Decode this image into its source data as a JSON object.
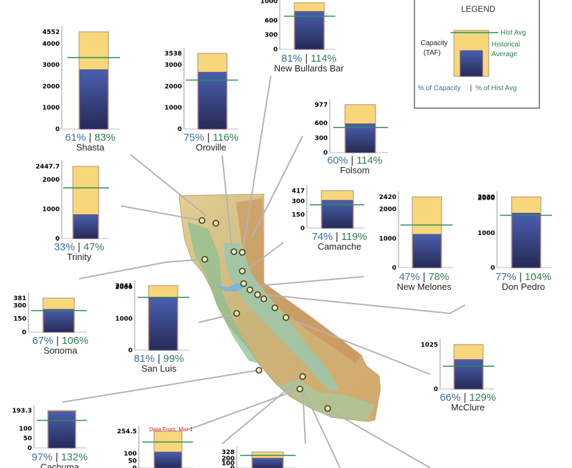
{
  "legend": {
    "title": "LEGEND",
    "capacity_label_1": "Capacity",
    "capacity_label_2": "(TAF)",
    "hist_avg_label": "Hist Avg",
    "historical_label_1": "Historical",
    "historical_label_2": "Average",
    "pct_capacity_label": "% of Capacity",
    "sep": "|",
    "pct_hist_label": "% of Hist Avg"
  },
  "data_note": "Data From: Mar 1",
  "colors": {
    "capacity_fill": "#f7d77a",
    "storage_top": "#4a5fb0",
    "storage_bottom": "#262a55",
    "hist_line": "#2e8b57",
    "pct_capacity": "#3a6f9a",
    "pct_hist": "#2e7d4f",
    "dots": "#f2e9a8",
    "leaders": "#b3b3b3"
  },
  "chart_data": {
    "type": "bar",
    "units": "TAF",
    "reservoirs": [
      {
        "name": "Shasta",
        "capacity": 4552,
        "storage": 2777,
        "hist_avg": 3346,
        "pct_capacity": "61%",
        "pct_hist": "83%",
        "ticks": [
          "4552",
          "4000",
          "3000",
          "2000",
          "1000",
          "0"
        ]
      },
      {
        "name": "Oroville",
        "capacity": 3538,
        "storage": 2654,
        "hist_avg": 2288,
        "pct_capacity": "75%",
        "pct_hist": "116%",
        "ticks": [
          "3538",
          "3000",
          "2000",
          "1000",
          "0"
        ]
      },
      {
        "name": "New Bullards Bar",
        "capacity": 966,
        "storage": 783,
        "hist_avg": 687,
        "pct_capacity": "81%",
        "pct_hist": "114%",
        "ticks": [
          "1000",
          "600",
          "300",
          "0"
        ]
      },
      {
        "name": "Folsom",
        "capacity": 977,
        "storage": 586,
        "hist_avg": 514,
        "pct_capacity": "60%",
        "pct_hist": "114%",
        "ticks": [
          "977",
          "600",
          "300",
          "0"
        ]
      },
      {
        "name": "Trinity",
        "capacity": 2447.7,
        "storage": 808,
        "hist_avg": 1719,
        "pct_capacity": "33%",
        "pct_hist": "47%",
        "ticks": [
          "2447.7",
          "2000",
          "1000",
          "0"
        ]
      },
      {
        "name": "Camanche",
        "capacity": 417,
        "storage": 309,
        "hist_avg": 260,
        "pct_capacity": "74%",
        "pct_hist": "119%",
        "ticks": [
          "417",
          "300",
          "150",
          "0"
        ]
      },
      {
        "name": "New Melones",
        "capacity": 2420,
        "storage": 1137,
        "hist_avg": 1458,
        "pct_capacity": "47%",
        "pct_hist": "78%",
        "ticks": [
          "2420",
          "2000",
          "1000",
          "0"
        ]
      },
      {
        "name": "Don Pedro",
        "capacity": 2030,
        "storage": 1563,
        "hist_avg": 1503,
        "pct_capacity": "77%",
        "pct_hist": "104%",
        "ticks": [
          "2030",
          "2000",
          "1000",
          "0"
        ]
      },
      {
        "name": "Sonoma",
        "capacity": 381,
        "storage": 255,
        "hist_avg": 241,
        "pct_capacity": "67%",
        "pct_hist": "106%",
        "ticks": [
          "381",
          "300",
          "150",
          "0"
        ]
      },
      {
        "name": "San Luis",
        "capacity": 2041,
        "storage": 1653,
        "hist_avg": 1670,
        "pct_capacity": "81%",
        "pct_hist": "99%",
        "ticks": [
          "2041",
          "2000",
          "1000",
          "0"
        ]
      },
      {
        "name": "McClure",
        "capacity": 1025,
        "storage": 677,
        "hist_avg": 525,
        "pct_capacity": "66%",
        "pct_hist": "129%",
        "ticks": [
          "1025",
          "0"
        ]
      },
      {
        "name": "Cachuma",
        "capacity": 193.3,
        "storage": 187.5,
        "hist_avg": 142,
        "pct_capacity": "97%",
        "pct_hist": "132%",
        "ticks": [
          "193.3",
          "100",
          "50",
          "0"
        ]
      },
      {
        "name": "",
        "capacity": 254.5,
        "storage": 110,
        "hist_avg": 180,
        "pct_capacity": "",
        "pct_hist": "",
        "ticks": [
          "254.5",
          "100",
          "50",
          "0"
        ]
      },
      {
        "name": "",
        "capacity": 328,
        "storage": 200,
        "hist_avg": 260,
        "pct_capacity": "",
        "pct_hist": "",
        "ticks": [
          "328",
          "200",
          "100",
          "0"
        ]
      }
    ]
  }
}
